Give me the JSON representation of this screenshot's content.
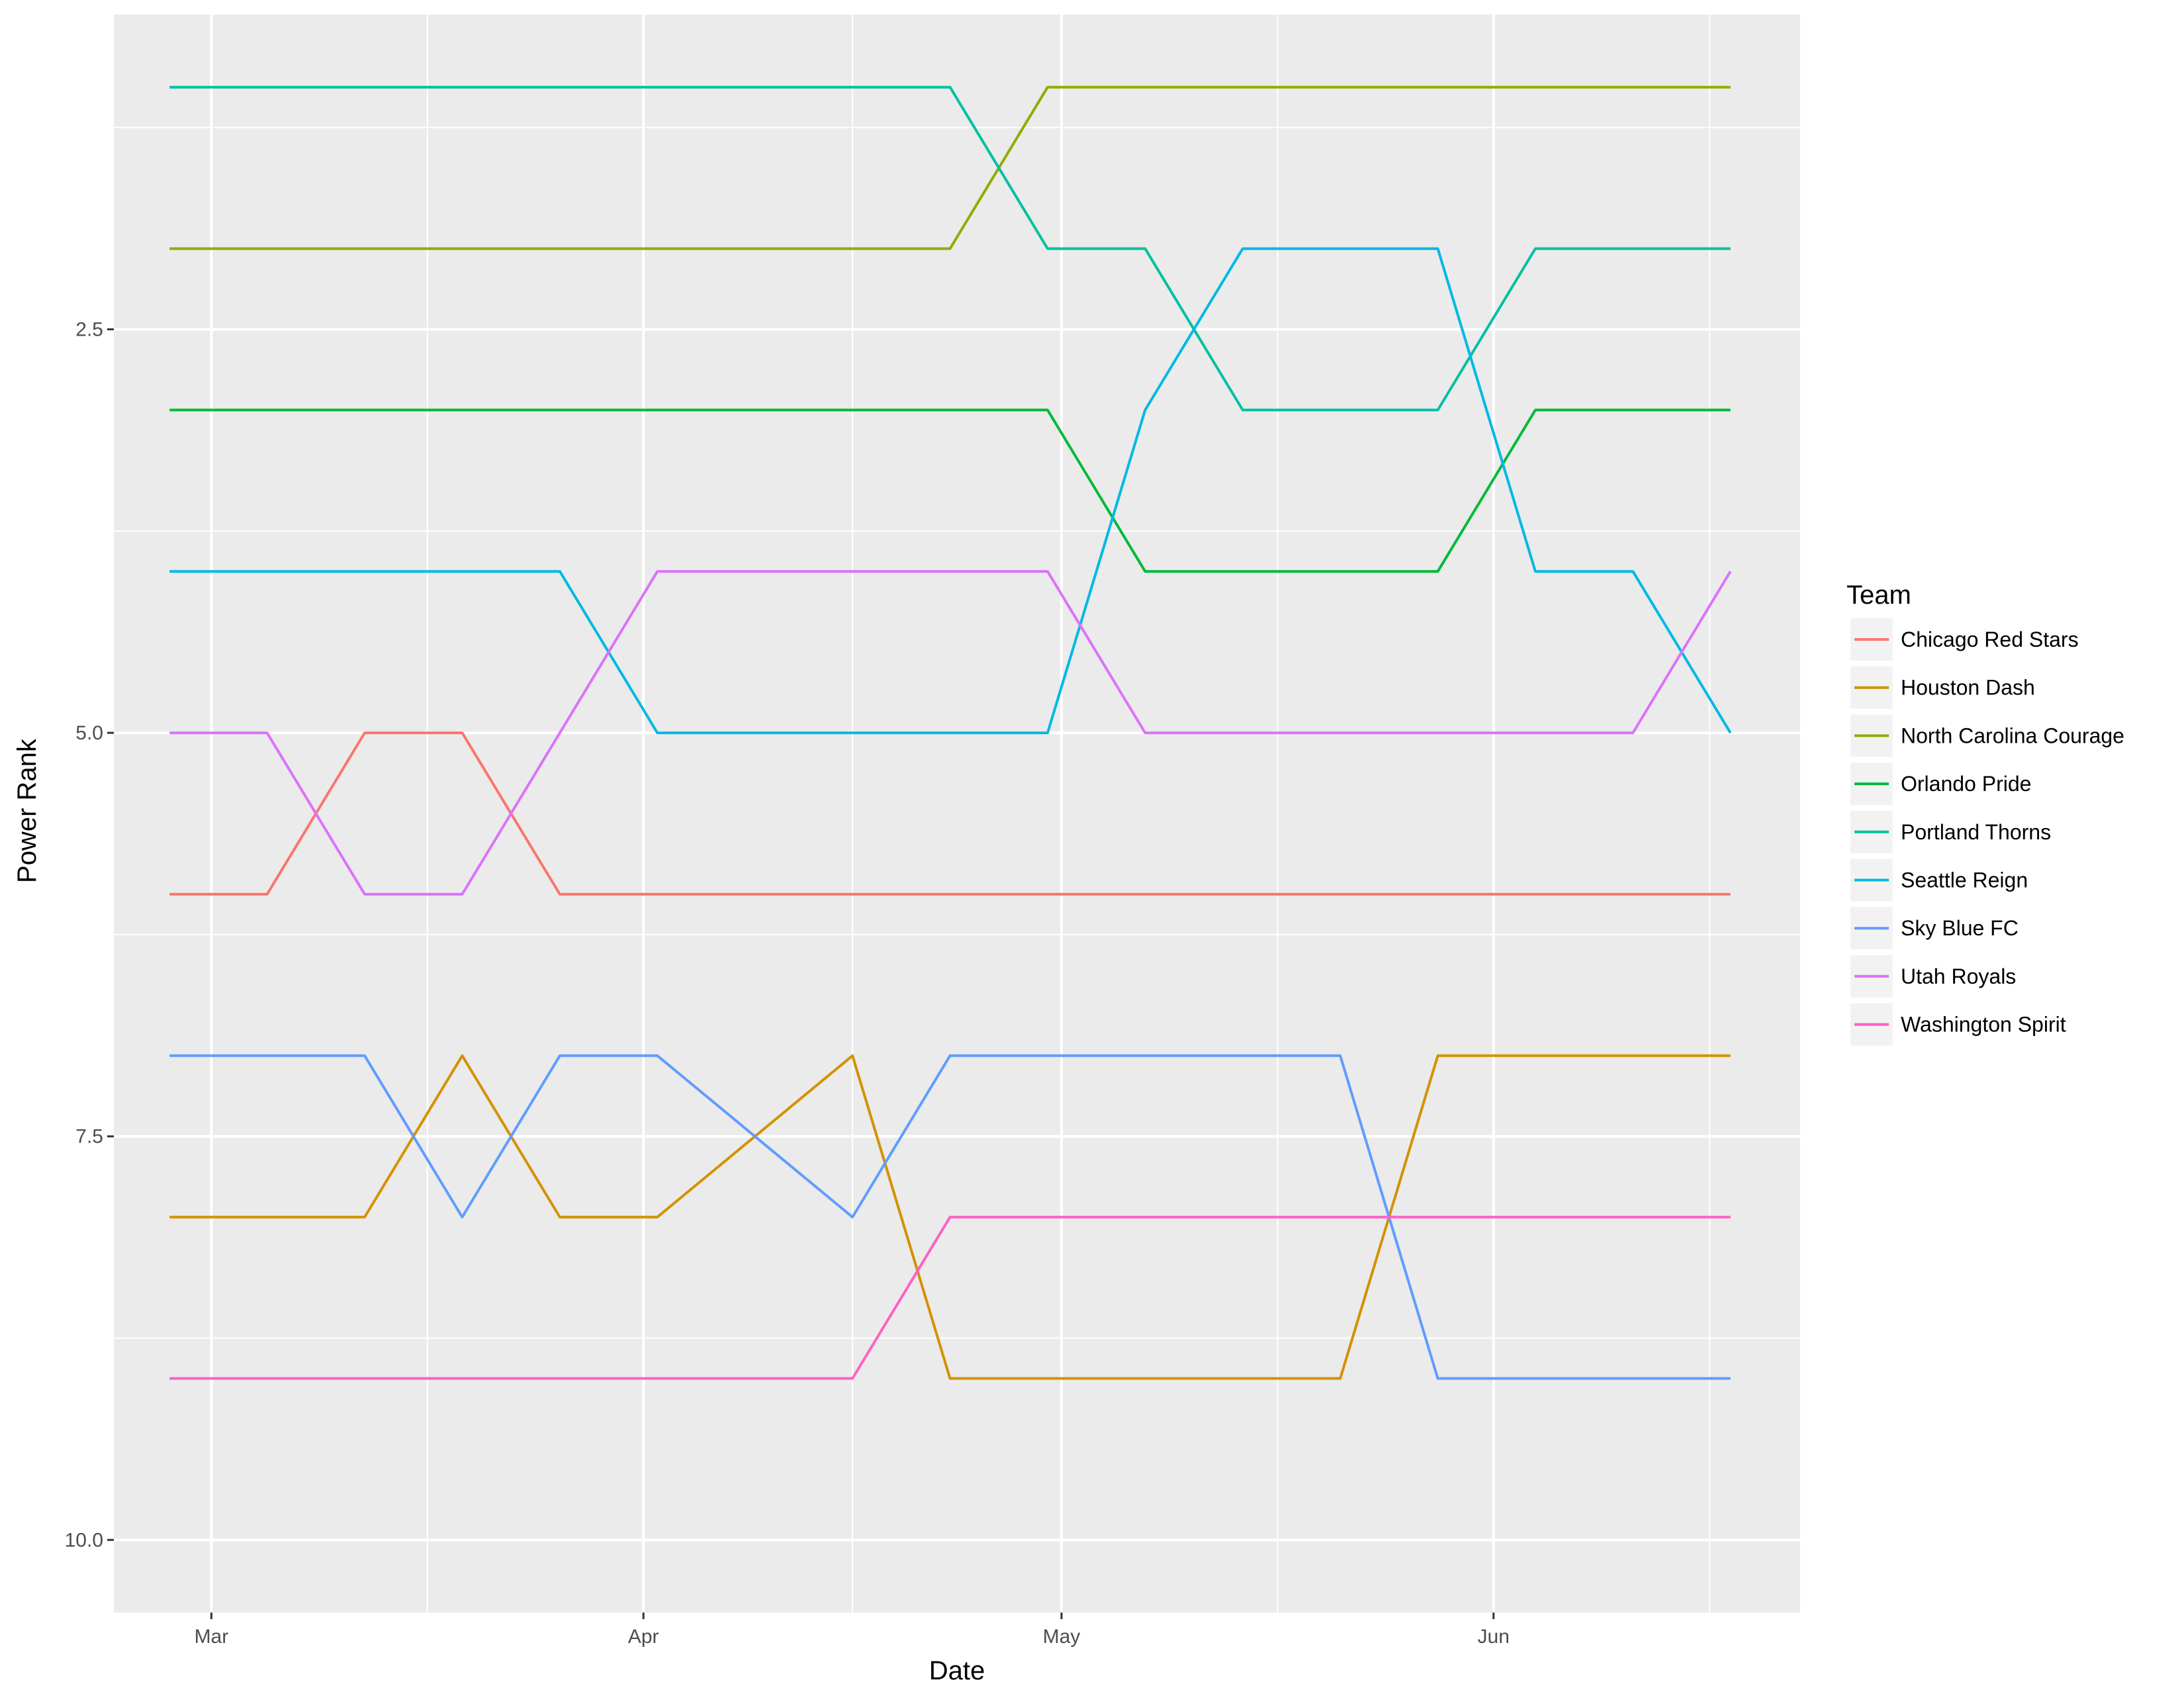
{
  "chart_data": {
    "type": "line",
    "title": "",
    "xlabel": "Date",
    "ylabel": "Power Rank",
    "x_ticks": [
      {
        "date": "2018-03-01",
        "label": "Mar"
      },
      {
        "date": "2018-04-01",
        "label": "Apr"
      },
      {
        "date": "2018-05-01",
        "label": "May"
      },
      {
        "date": "2018-06-01",
        "label": "Jun"
      }
    ],
    "y_ticks": [
      {
        "value": 2.5,
        "label": "2.5"
      },
      {
        "value": 5.0,
        "label": "5.0"
      },
      {
        "value": 7.5,
        "label": "7.5"
      },
      {
        "value": 10.0,
        "label": "10.0"
      }
    ],
    "xlim": [
      "2018-02-22",
      "2018-06-23"
    ],
    "ylim": [
      10.45,
      0.55
    ],
    "y_reversed": true,
    "grid": true,
    "background": "#ebebeb",
    "legend_title": "Team",
    "legend_position": "right",
    "x": [
      "2018-02-26",
      "2018-03-05",
      "2018-03-12",
      "2018-03-19",
      "2018-03-26",
      "2018-04-02",
      "2018-04-09",
      "2018-04-16",
      "2018-04-23",
      "2018-04-30",
      "2018-05-07",
      "2018-05-14",
      "2018-05-21",
      "2018-05-28",
      "2018-06-04",
      "2018-06-11",
      "2018-06-18"
    ],
    "series": [
      {
        "name": "Chicago Red Stars",
        "color": "#F8766D",
        "values": [
          6,
          6,
          5,
          5,
          6,
          6,
          6,
          6,
          6,
          6,
          6,
          6,
          6,
          6,
          6,
          6,
          6
        ]
      },
      {
        "name": "Houston Dash",
        "color": "#D39200",
        "values": [
          8,
          8,
          8,
          7,
          8,
          8,
          7.5,
          7,
          9,
          9,
          9,
          9,
          9,
          7,
          7,
          7,
          7
        ]
      },
      {
        "name": "North Carolina Courage",
        "color": "#93AA00",
        "values": [
          2,
          2,
          2,
          2,
          2,
          2,
          2,
          2,
          2,
          1,
          1,
          1,
          1,
          1,
          1,
          1,
          1
        ]
      },
      {
        "name": "Orlando Pride",
        "color": "#00BA38",
        "values": [
          3,
          3,
          3,
          3,
          3,
          3,
          3,
          3,
          3,
          3,
          4,
          4,
          4,
          4,
          3,
          3,
          3
        ]
      },
      {
        "name": "Portland Thorns",
        "color": "#00C19F",
        "values": [
          1,
          1,
          1,
          1,
          1,
          1,
          1,
          1,
          1,
          2,
          2,
          3,
          3,
          3,
          2,
          2,
          2
        ]
      },
      {
        "name": "Seattle Reign",
        "color": "#00B9E3",
        "values": [
          4,
          4,
          4,
          4,
          4,
          5,
          5,
          5,
          5,
          5,
          3,
          2,
          2,
          2,
          4,
          4,
          5
        ]
      },
      {
        "name": "Sky Blue FC",
        "color": "#619CFF",
        "values": [
          7,
          7,
          7,
          8,
          7,
          7,
          7.5,
          8,
          7,
          7,
          7,
          7,
          7,
          9,
          9,
          9,
          9
        ]
      },
      {
        "name": "Utah Royals",
        "color": "#DB72FB",
        "values": [
          5,
          5,
          6,
          6,
          5,
          4,
          4,
          4,
          4,
          4,
          5,
          5,
          5,
          5,
          5,
          5,
          4
        ]
      },
      {
        "name": "Washington Spirit",
        "color": "#FF61C3",
        "values": [
          9,
          9,
          9,
          9,
          9,
          9,
          9,
          9,
          8,
          8,
          8,
          8,
          8,
          8,
          8,
          8,
          8
        ]
      }
    ]
  }
}
